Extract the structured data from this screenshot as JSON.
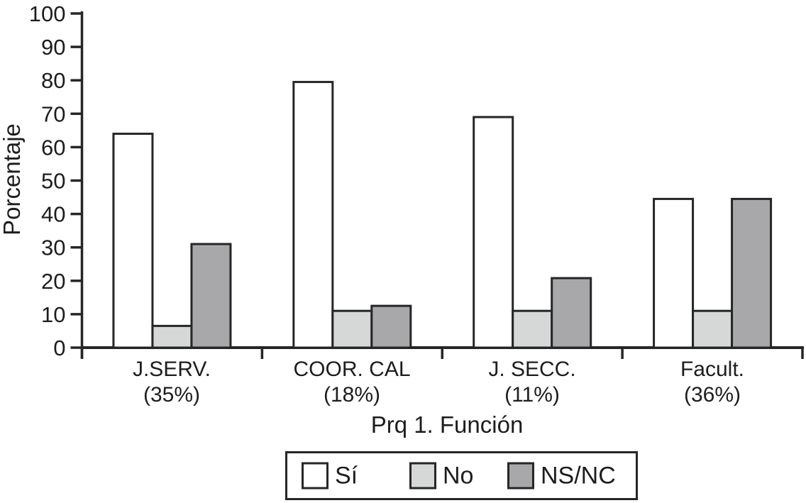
{
  "chart_data": {
    "type": "bar",
    "title": "",
    "ylabel": "Porcentaje",
    "xlabel": "Prq 1. Función",
    "ylim": [
      0,
      100
    ],
    "ytick_step": 10,
    "grid": false,
    "legend_position": "bottom-boxed",
    "categories": [
      {
        "name": "J.SERV.",
        "share": "(35%)"
      },
      {
        "name": "COOR. CAL",
        "share": "(18%)"
      },
      {
        "name": "J. SECC.",
        "share": "(11%)"
      },
      {
        "name": "Facult.",
        "share": "(36%)"
      }
    ],
    "series": [
      {
        "name": "Sí",
        "color": "#ffffff",
        "values": [
          64,
          79.5,
          69,
          44.5
        ]
      },
      {
        "name": "No",
        "color": "#d6d8d8",
        "values": [
          6.5,
          11,
          11,
          11
        ]
      },
      {
        "name": "NS/NC",
        "color": "#a8a8ab",
        "values": [
          31,
          12.5,
          20.8,
          44.5
        ]
      }
    ],
    "axis_color": "#262626",
    "bar_border_color": "#262626",
    "text_color": "#1d1d1d"
  }
}
